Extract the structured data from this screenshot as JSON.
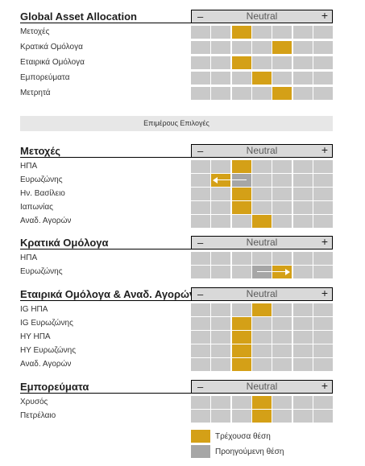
{
  "scale": {
    "minus": "–",
    "neutral": "Neutral",
    "plus": "+",
    "positions": 7,
    "neutral_index": 3
  },
  "banner": "Επιμέρους Επιλογές",
  "legend": {
    "current": "Τρέχουσα θέση",
    "previous": "Προηγούμενη θέση",
    "current_color": "#d4a017",
    "previous_color": "#a6a6a6",
    "empty_color": "#c9c9c9"
  },
  "chart_data": {
    "type": "table",
    "scale_positions": 7,
    "neutral_position": 3,
    "sections": [
      {
        "title": "Global Asset Allocation",
        "rows": [
          {
            "label": "Μετοχές",
            "current": 2,
            "previous": null
          },
          {
            "label": "Κρατικά Ομόλογα",
            "current": 4,
            "previous": null
          },
          {
            "label": "Εταιρικά Ομόλογα",
            "current": 2,
            "previous": null
          },
          {
            "label": "Εμπορεύματα",
            "current": 3,
            "previous": null
          },
          {
            "label": "Μετρητά",
            "current": 4,
            "previous": null
          }
        ]
      },
      {
        "title": "Μετοχές",
        "rows": [
          {
            "label": "ΗΠΑ",
            "current": 2,
            "previous": null
          },
          {
            "label": "Ευρωζώνης",
            "current": 1,
            "previous": 2
          },
          {
            "label": "Ην. Βασίλειο",
            "current": 2,
            "previous": null
          },
          {
            "label": "Ιαπωνίας",
            "current": 2,
            "previous": null
          },
          {
            "label": "Αναδ. Αγορών",
            "current": 3,
            "previous": null
          }
        ]
      },
      {
        "title": "Κρατικά Ομόλογα",
        "rows": [
          {
            "label": "ΗΠΑ",
            "current": null,
            "previous": null
          },
          {
            "label": "Ευρωζώνης",
            "current": 4,
            "previous": 3
          }
        ]
      },
      {
        "title": "Εταιρικά Ομόλογα & Αναδ. Αγορών",
        "rows": [
          {
            "label": "IG ΗΠΑ",
            "current": 3,
            "previous": null
          },
          {
            "label": "IG Ευρωζώνης",
            "current": 2,
            "previous": null
          },
          {
            "label": "ΗΥ ΗΠΑ",
            "current": 2,
            "previous": null
          },
          {
            "label": "ΗΥ Ευρωζώνης",
            "current": 2,
            "previous": null
          },
          {
            "label": "Αναδ. Αγορών",
            "current": 2,
            "previous": null
          }
        ]
      },
      {
        "title": "Εμπορεύματα",
        "rows": [
          {
            "label": "Χρυσός",
            "current": 3,
            "previous": null
          },
          {
            "label": "Πετρέλαιο",
            "current": 3,
            "previous": null
          }
        ]
      }
    ]
  }
}
